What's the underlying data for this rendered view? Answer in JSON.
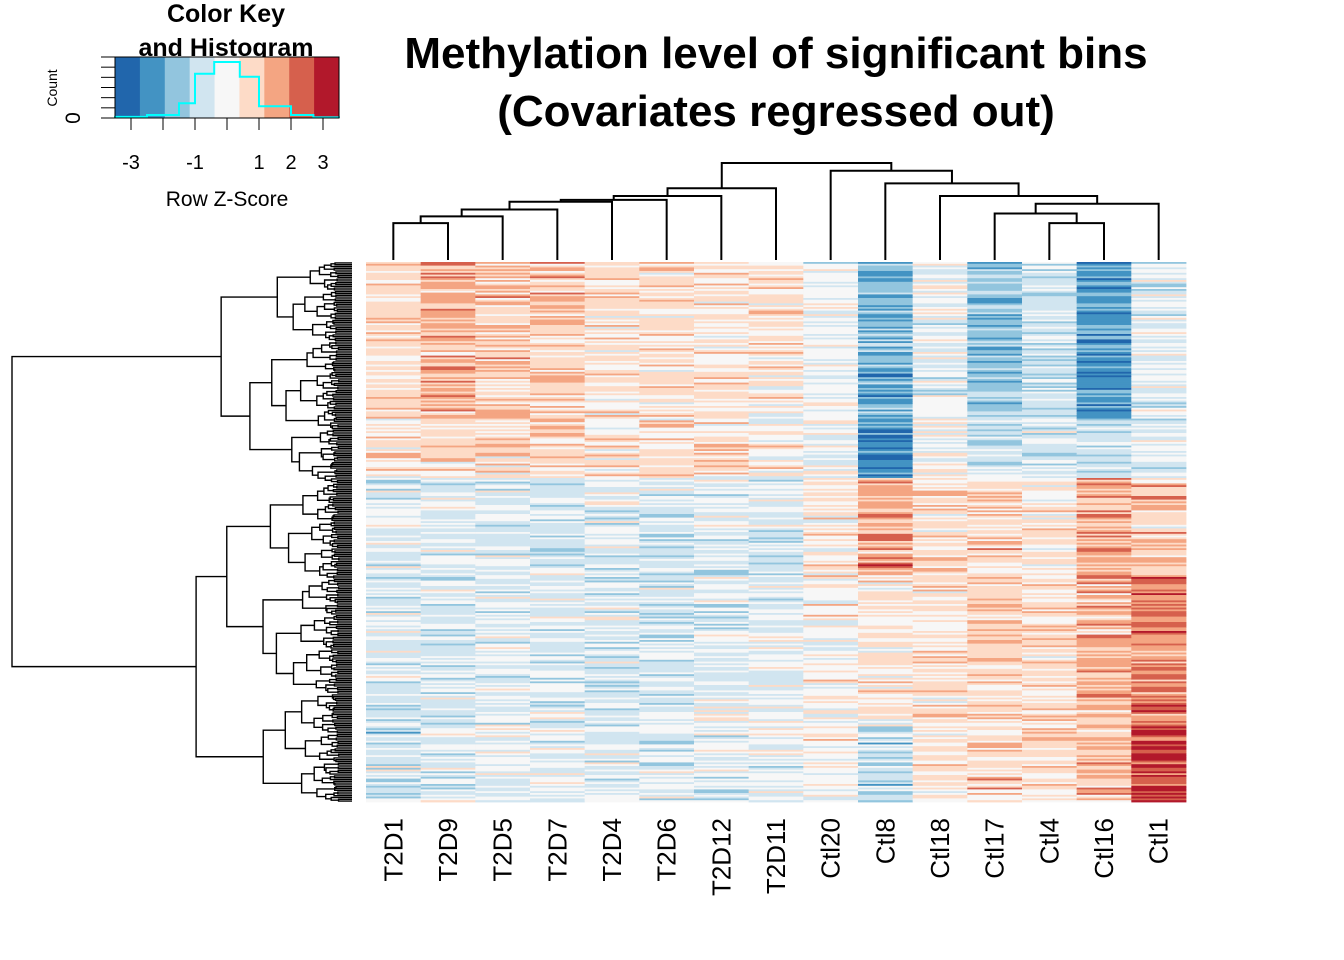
{
  "chart_data": {
    "type": "heatmap",
    "title_lines": [
      "Methylation level of significant bins",
      "(Covariates regressed out)"
    ],
    "columns": [
      "T2D1",
      "T2D9",
      "T2D5",
      "T2D7",
      "T2D4",
      "T2D6",
      "T2D12",
      "T2D11",
      "Ctl20",
      "Ctl8",
      "Ctl18",
      "Ctl17",
      "Ctl4",
      "Ctl16",
      "Ctl1"
    ],
    "row_profiles": [
      {
        "rows": [
          0.0,
          0.29
        ],
        "values": [
          0.6,
          1.3,
          0.9,
          0.9,
          0.5,
          0.5,
          0.5,
          0.4,
          -0.2,
          -1.8,
          -0.2,
          -1.4,
          -0.8,
          -2.2,
          -0.4
        ]
      },
      {
        "rows": [
          0.29,
          0.4
        ],
        "values": [
          0.5,
          0.8,
          0.6,
          0.8,
          0.5,
          0.6,
          0.6,
          0.3,
          -0.2,
          -2.5,
          -0.1,
          -0.8,
          -0.6,
          -0.9,
          -0.5
        ]
      },
      {
        "rows": [
          0.4,
          0.58
        ],
        "values": [
          -0.3,
          -0.5,
          -0.5,
          -0.6,
          -0.4,
          -0.7,
          -0.5,
          -0.5,
          0.2,
          1.5,
          0.6,
          0.7,
          0.4,
          1.5,
          0.9
        ]
      },
      {
        "rows": [
          0.58,
          0.86
        ],
        "values": [
          -0.6,
          -0.5,
          -0.5,
          -0.5,
          -0.5,
          -0.6,
          -0.4,
          -0.3,
          0.1,
          0.4,
          0.5,
          0.9,
          0.7,
          1.3,
          1.9
        ]
      },
      {
        "rows": [
          0.86,
          1.0
        ],
        "values": [
          -0.6,
          -0.4,
          -0.3,
          -0.3,
          -0.4,
          -0.4,
          -0.3,
          -0.2,
          0.0,
          -1.0,
          0.4,
          0.6,
          0.6,
          1.0,
          2.7
        ]
      }
    ],
    "color_key": {
      "title_lines": [
        "Color Key",
        "and Histogram"
      ],
      "xlabel": "Row Z-Score",
      "ylabel": "Count",
      "y_tick": "0",
      "xlim": [
        -3.5,
        3.5
      ],
      "x_ticks": [
        -3,
        -1,
        1,
        2,
        3
      ],
      "colors": [
        "#2166ac",
        "#4393c3",
        "#92c5de",
        "#d1e5f0",
        "#f7f7f7",
        "#fddbc7",
        "#f4a582",
        "#d6604d",
        "#b2182b"
      ],
      "histogram_line_color": "#00ffff",
      "histogram_bins": [
        {
          "x0": -3.5,
          "x1": -2.5,
          "count": 0.02
        },
        {
          "x0": -2.5,
          "x1": -1.5,
          "count": 0.05
        },
        {
          "x0": -1.5,
          "x1": -1.0,
          "count": 0.25
        },
        {
          "x0": -1.0,
          "x1": -0.4,
          "count": 0.75
        },
        {
          "x0": -0.4,
          "x1": 0.4,
          "count": 0.95
        },
        {
          "x0": 0.4,
          "x1": 1.0,
          "count": 0.7
        },
        {
          "x0": 1.0,
          "x1": 2.0,
          "count": 0.2
        },
        {
          "x0": 2.0,
          "x1": 2.7,
          "count": 0.05
        },
        {
          "x0": 2.7,
          "x1": 3.5,
          "count": 0.01
        }
      ]
    },
    "column_dendrogram": {
      "merges": [
        {
          "left": 0,
          "right": 1,
          "height": 0.38
        },
        {
          "left": 12,
          "right": 13,
          "height": 0.38
        },
        {
          "left": -1,
          "right": 2,
          "height": 0.45
        },
        {
          "left": 11,
          "right": -2,
          "height": 0.48
        },
        {
          "left": -3,
          "right": 3,
          "height": 0.52
        },
        {
          "left": -4,
          "right": 14,
          "height": 0.58
        },
        {
          "left": -5,
          "right": 4,
          "height": 0.6
        },
        {
          "left": -7,
          "right": 5,
          "height": 0.62
        },
        {
          "left": -8,
          "right": 6,
          "height": 0.66
        },
        {
          "left": 10,
          "right": -6,
          "height": 0.66
        },
        {
          "left": -9,
          "right": 7,
          "height": 0.74
        },
        {
          "left": 9,
          "right": -10,
          "height": 0.79
        },
        {
          "left": 8,
          "right": -12,
          "height": 0.92
        },
        {
          "left": -11,
          "right": -13,
          "height": 1.0
        }
      ]
    }
  }
}
